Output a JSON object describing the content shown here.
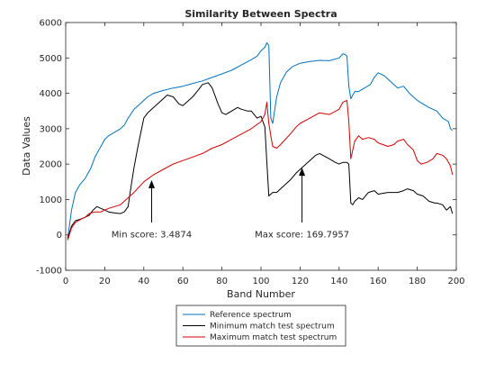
{
  "chart_data": {
    "type": "line",
    "title": "Similarity Between Spectra",
    "xlabel": "Band Number",
    "ylabel": "Data Values",
    "xlim": [
      0,
      200
    ],
    "ylim": [
      -1000,
      6000
    ],
    "xticks": [
      0,
      20,
      40,
      60,
      80,
      100,
      120,
      140,
      160,
      180,
      200
    ],
    "yticks": [
      -1000,
      0,
      1000,
      2000,
      3000,
      4000,
      5000,
      6000
    ],
    "grid": false,
    "legend_position": "bottom, outside",
    "series": [
      {
        "name": "Reference spectrum",
        "color": "#0072bd",
        "x": [
          1,
          3,
          5,
          7,
          10,
          13,
          15,
          18,
          20,
          22,
          25,
          28,
          30,
          32,
          35,
          38,
          40,
          42,
          45,
          48,
          50,
          55,
          60,
          65,
          70,
          75,
          80,
          85,
          90,
          95,
          98,
          100,
          102,
          103,
          104,
          105,
          106,
          108,
          110,
          113,
          116,
          120,
          125,
          130,
          135,
          140,
          142,
          143,
          144,
          145,
          146,
          147,
          148,
          150,
          153,
          156,
          158,
          160,
          163,
          166,
          168,
          170,
          173,
          176,
          180,
          183,
          186,
          190,
          193,
          196,
          197,
          198
        ],
        "y": [
          -100,
          700,
          1200,
          1400,
          1600,
          1900,
          2200,
          2500,
          2700,
          2800,
          2900,
          3000,
          3100,
          3300,
          3550,
          3700,
          3800,
          3900,
          4000,
          4050,
          4080,
          4150,
          4200,
          4280,
          4350,
          4450,
          4550,
          4650,
          4800,
          4950,
          5050,
          5200,
          5300,
          5430,
          5350,
          3300,
          3150,
          3900,
          4300,
          4600,
          4750,
          4850,
          4900,
          4930,
          4920,
          5000,
          5120,
          5100,
          5050,
          4200,
          3850,
          3950,
          4050,
          4050,
          4150,
          4250,
          4450,
          4580,
          4500,
          4350,
          4250,
          4150,
          4200,
          4000,
          3800,
          3700,
          3600,
          3500,
          3300,
          3200,
          3000,
          2950
        ]
      },
      {
        "name": "Minimum match test spectrum",
        "color": "#000000",
        "x": [
          1,
          3,
          5,
          8,
          10,
          12,
          14,
          16,
          18,
          20,
          22,
          25,
          28,
          30,
          32,
          33,
          35,
          37,
          40,
          42,
          45,
          48,
          50,
          52,
          55,
          58,
          60,
          62,
          65,
          68,
          70,
          73,
          75,
          78,
          80,
          82,
          85,
          88,
          90,
          93,
          95,
          98,
          100,
          102,
          103,
          104,
          105,
          106,
          108,
          110,
          115,
          118,
          120,
          123,
          125,
          128,
          130,
          135,
          138,
          140,
          142,
          144,
          145,
          146,
          147,
          148,
          150,
          152,
          155,
          158,
          160,
          165,
          170,
          173,
          175,
          178,
          180,
          183,
          186,
          189,
          190,
          193,
          195,
          197,
          198
        ],
        "y": [
          -100,
          250,
          400,
          450,
          500,
          550,
          700,
          800,
          750,
          700,
          650,
          620,
          600,
          650,
          800,
          1200,
          1900,
          2500,
          3300,
          3450,
          3600,
          3750,
          3850,
          3950,
          3900,
          3700,
          3650,
          3750,
          3900,
          4100,
          4250,
          4300,
          4150,
          3700,
          3450,
          3400,
          3500,
          3600,
          3550,
          3500,
          3500,
          3300,
          3350,
          3050,
          2050,
          1100,
          1150,
          1200,
          1200,
          1300,
          1550,
          1750,
          1850,
          2000,
          2100,
          2250,
          2300,
          2150,
          2050,
          2000,
          2050,
          2050,
          2000,
          900,
          850,
          950,
          1050,
          1000,
          1200,
          1250,
          1150,
          1200,
          1200,
          1250,
          1300,
          1250,
          1150,
          1100,
          950,
          900,
          900,
          850,
          700,
          800,
          600
        ]
      },
      {
        "name": "Maximum match test spectrum",
        "color": "#d40000",
        "x": [
          1,
          3,
          5,
          8,
          10,
          12,
          15,
          18,
          20,
          22,
          25,
          28,
          30,
          35,
          40,
          45,
          50,
          55,
          60,
          65,
          70,
          75,
          80,
          85,
          90,
          95,
          100,
          102,
          103,
          104,
          105,
          106,
          108,
          110,
          115,
          118,
          120,
          125,
          130,
          135,
          140,
          142,
          144,
          145,
          146,
          147,
          148,
          150,
          152,
          155,
          158,
          160,
          165,
          168,
          170,
          173,
          175,
          178,
          180,
          182,
          185,
          188,
          190,
          193,
          195,
          197,
          198
        ],
        "y": [
          -150,
          200,
          350,
          450,
          500,
          600,
          650,
          650,
          700,
          750,
          800,
          850,
          950,
          1200,
          1500,
          1700,
          1850,
          2000,
          2100,
          2200,
          2300,
          2450,
          2550,
          2700,
          2850,
          3000,
          3200,
          3400,
          3750,
          3150,
          2800,
          2500,
          2450,
          2550,
          2850,
          3050,
          3150,
          3300,
          3450,
          3400,
          3550,
          3750,
          3800,
          3200,
          2150,
          2400,
          2650,
          2800,
          2700,
          2750,
          2700,
          2600,
          2500,
          2550,
          2650,
          2700,
          2550,
          2400,
          2100,
          2000,
          2050,
          2150,
          2300,
          2250,
          2150,
          1950,
          1700
        ]
      }
    ],
    "annotations": [
      {
        "text": "Min score: 3.4874",
        "arrow_x": 44,
        "arrow_y_from": 350,
        "arrow_y_to": 1550,
        "text_x": 44,
        "text_y": 0
      },
      {
        "text": "Max score: 169.7957",
        "arrow_x": 121,
        "arrow_y_from": 350,
        "arrow_y_to": 1900,
        "text_x": 121,
        "text_y": 0
      }
    ]
  }
}
